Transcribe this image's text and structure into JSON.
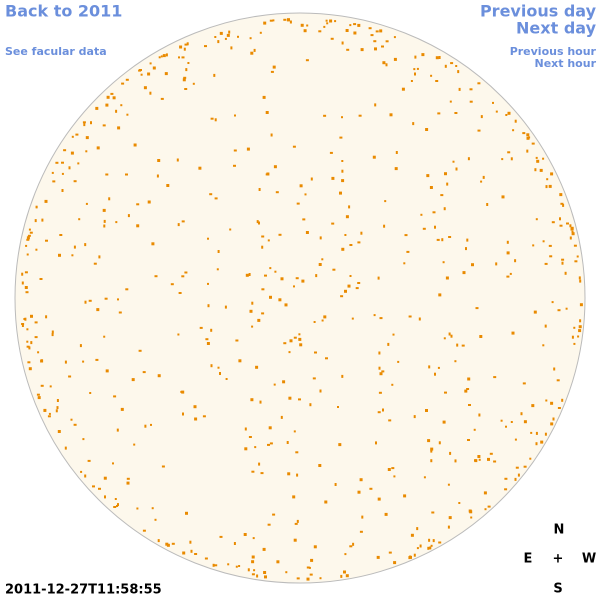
{
  "header": {
    "back_link": "Back to 2011",
    "facular_link": "See facular data",
    "previous_day": "Previous day",
    "next_day": "Next day",
    "previous_hour": "Previous hour",
    "next_hour": "Next hour"
  },
  "timestamp": "2011-12-27T11:58:55",
  "compass": {
    "north": "N",
    "east": "E",
    "center": "+",
    "west": "W",
    "south": "S"
  }
}
